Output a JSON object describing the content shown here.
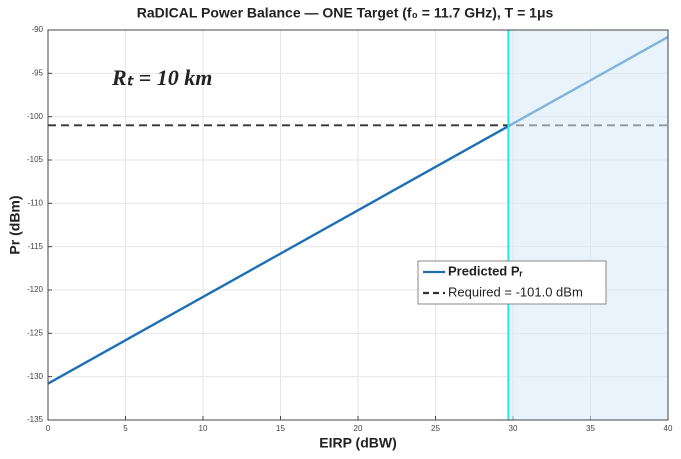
{
  "chart_data": {
    "type": "line",
    "title": "RaDICAL Power Balance — ONE Target (f₀ = 11.7 GHz), T = 1μs",
    "annotation": "Rₜ = 10 km",
    "x_label": "EIRP (dBW)",
    "y_label": "Pr (dBm)",
    "x": [
      0,
      40
    ],
    "series": [
      {
        "name": "Predicted Pᵣ",
        "color": "#1f6fb5",
        "style": "solid",
        "values": [
          -130.8,
          -90.8
        ]
      },
      {
        "name": "Required = -101.0 dBm",
        "color": "#333333",
        "style": "dashed",
        "values": [
          -101,
          -101
        ]
      }
    ],
    "threshold_x": 29.7,
    "threshold_color": "#22e6f0",
    "shade_color": "#d6eafa",
    "xlim": [
      0,
      40
    ],
    "xticks": [
      0,
      5,
      10,
      15,
      20,
      25,
      30,
      35,
      40
    ],
    "ylim": [
      -135,
      -90
    ],
    "yticks": [
      -90,
      -95,
      -100,
      -105,
      -110,
      -115,
      -120,
      -125,
      -130,
      -135
    ],
    "grid": true
  }
}
